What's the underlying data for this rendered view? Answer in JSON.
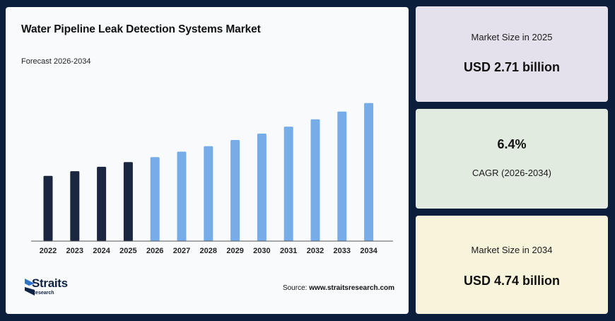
{
  "chart_data": {
    "type": "bar",
    "title": "Water Pipeline Leak Detection Systems Market",
    "subtitle": "Forecast 2026-2034",
    "categories": [
      "2022",
      "2023",
      "2024",
      "2025",
      "2026",
      "2027",
      "2028",
      "2029",
      "2030",
      "2031",
      "2032",
      "2033",
      "2034"
    ],
    "values": [
      2.24,
      2.4,
      2.55,
      2.71,
      2.88,
      3.07,
      3.26,
      3.47,
      3.69,
      3.93,
      4.18,
      4.45,
      4.74
    ],
    "bar_colors": [
      "#1b2640",
      "#1b2640",
      "#1b2640",
      "#1b2640",
      "#76ade9",
      "#76ade9",
      "#76ade9",
      "#76ade9",
      "#76ade9",
      "#76ade9",
      "#76ade9",
      "#76ade9",
      "#76ade9"
    ],
    "grid": false,
    "legend": "none"
  },
  "source": {
    "label": "Source:",
    "text": "www.straitsresearch.com"
  },
  "logo": {
    "name": "Straits",
    "sub": "Research"
  },
  "stats": {
    "size_2025_label": "Market Size in 2025",
    "size_2025_value": "USD 2.71 billion",
    "cagr_value": "6.4%",
    "cagr_label": "CAGR (2026-2034)",
    "size_2034_label": "Market Size in 2034",
    "size_2034_value": "USD 4.74 billion"
  },
  "colors": {
    "background": "#0b1e3c",
    "historical": "#1b2640",
    "forecast": "#76ade9",
    "card_purple": "#e5e1ec",
    "card_green": "#e2ebe0",
    "card_yellow": "#f8f3db"
  }
}
